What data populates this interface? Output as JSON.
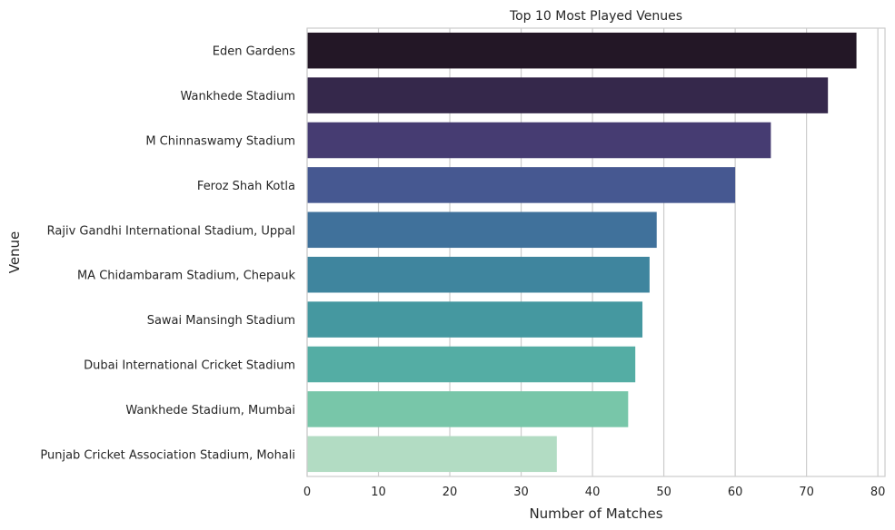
{
  "chart_data": {
    "type": "bar",
    "orientation": "horizontal",
    "title": "Top 10 Most Played Venues",
    "xlabel": "Number of Matches",
    "ylabel": "Venue",
    "xlim": [
      0,
      81
    ],
    "xticks": [
      0,
      10,
      20,
      30,
      40,
      50,
      60,
      70,
      80
    ],
    "grid": true,
    "categories": [
      "Eden Gardens",
      "Wankhede Stadium",
      "M Chinnaswamy Stadium",
      "Feroz Shah Kotla",
      "Rajiv Gandhi International Stadium, Uppal",
      "MA Chidambaram Stadium, Chepauk",
      "Sawai Mansingh Stadium",
      "Dubai International Cricket Stadium",
      "Wankhede Stadium, Mumbai",
      "Punjab Cricket Association Stadium, Mohali"
    ],
    "values": [
      77,
      73,
      65,
      60,
      49,
      48,
      47,
      46,
      45,
      35
    ],
    "colors": [
      "#231726",
      "#35284b",
      "#463c72",
      "#465891",
      "#40719b",
      "#3f859e",
      "#4598a0",
      "#54ada4",
      "#78c6a9",
      "#b2dcc3"
    ]
  }
}
